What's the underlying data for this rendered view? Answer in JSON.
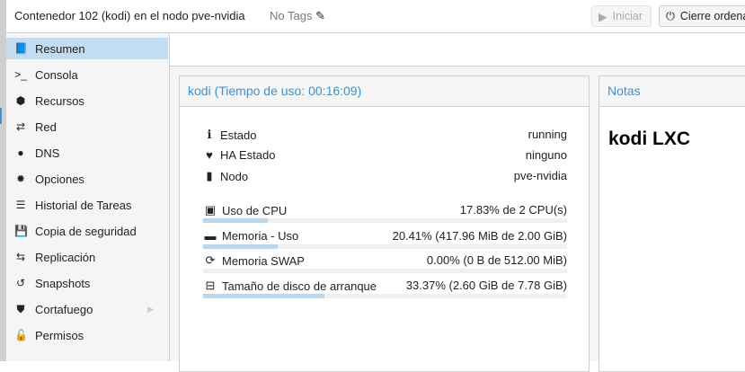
{
  "header": {
    "title": "Contenedor 102 (kodi) en el nodo pve-nvidia",
    "tags": "No Tags",
    "start_label": "Iniciar",
    "shutdown_label": "Cierre ordenado"
  },
  "sidebar": {
    "items": [
      {
        "label": "Resumen",
        "icon": "book-icon",
        "selected": true
      },
      {
        "label": "Consola",
        "icon": "terminal-icon"
      },
      {
        "label": "Recursos",
        "icon": "cube-icon"
      },
      {
        "label": "Red",
        "icon": "exchange-icon"
      },
      {
        "label": "DNS",
        "icon": "globe-icon"
      },
      {
        "label": "Opciones",
        "icon": "gear-icon"
      },
      {
        "label": "Historial de Tareas",
        "icon": "list-icon"
      },
      {
        "label": "Copia de seguridad",
        "icon": "floppy-icon"
      },
      {
        "label": "Replicación",
        "icon": "retweet-icon"
      },
      {
        "label": "Snapshots",
        "icon": "history-icon"
      },
      {
        "label": "Cortafuego",
        "icon": "shield-icon",
        "expandable": true
      },
      {
        "label": "Permisos",
        "icon": "unlock-icon"
      }
    ]
  },
  "summary": {
    "title": "kodi (Tiempo de uso: 00:16:09)",
    "info": [
      {
        "label": "Estado",
        "value": "running"
      },
      {
        "label": "HA Estado",
        "value": "ninguno"
      },
      {
        "label": "Nodo",
        "value": "pve-nvidia"
      }
    ],
    "usage": [
      {
        "label": "Uso de CPU",
        "value": "17.83% de 2 CPU(s)",
        "percent": 17.83
      },
      {
        "label": "Memoria - Uso",
        "value": "20.41% (417.96 MiB de 2.00 GiB)",
        "percent": 20.41
      },
      {
        "label": "Memoria SWAP",
        "value": "0.00% (0 B de 512.00 MiB)",
        "percent": 0
      },
      {
        "label": "Tamaño de disco de arranque",
        "value": "33.37% (2.60 GiB de 7.78 GiB)",
        "percent": 33.37
      }
    ]
  },
  "notes": {
    "title": "Notas",
    "content": "kodi LXC"
  }
}
